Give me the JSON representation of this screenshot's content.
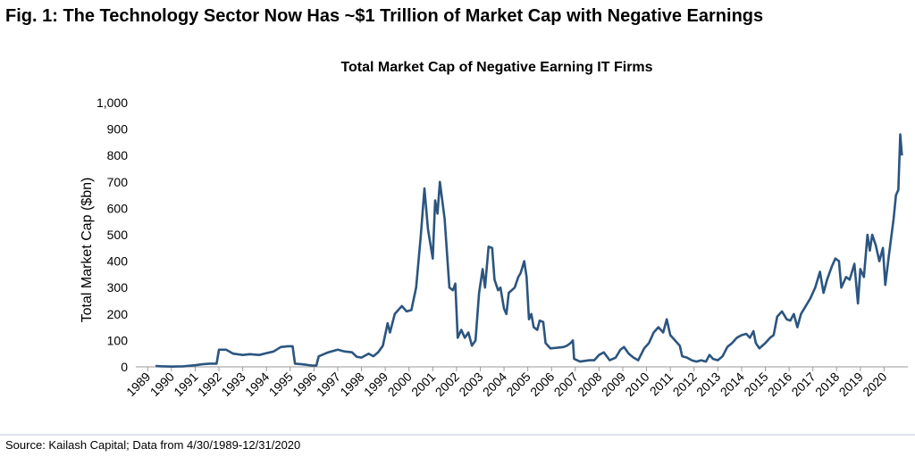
{
  "figure_title": "Fig. 1: The Technology Sector Now Has ~$1 Trillion of Market Cap with Negative Earnings",
  "source": "Source: Kailash Capital; Data from 4/30/1989-12/31/2020",
  "chart_data": {
    "type": "line",
    "title": "Total Market Cap of Negative Earning IT Firms",
    "y_label": "Total Market Cap ($bn)",
    "x": [
      1989.33,
      1989.6,
      1990.0,
      1990.5,
      1991.0,
      1991.3,
      1991.6,
      1991.9,
      1992.0,
      1992.3,
      1992.6,
      1993.0,
      1993.3,
      1993.7,
      1994.0,
      1994.3,
      1994.6,
      1994.9,
      1995.1,
      1995.2,
      1995.5,
      1995.9,
      1996.1,
      1996.2,
      1996.6,
      1997.0,
      1997.3,
      1997.6,
      1997.8,
      1998.0,
      1998.3,
      1998.5,
      1998.7,
      1998.9,
      1999.1,
      1999.2,
      1999.4,
      1999.7,
      1999.9,
      2000.1,
      2000.3,
      2000.5,
      2000.65,
      2000.8,
      2001.0,
      2001.1,
      2001.2,
      2001.3,
      2001.5,
      2001.7,
      2001.85,
      2001.95,
      2002.05,
      2002.2,
      2002.35,
      2002.5,
      2002.65,
      2002.8,
      2002.95,
      2003.1,
      2003.2,
      2003.35,
      2003.5,
      2003.6,
      2003.75,
      2003.85,
      2004.0,
      2004.1,
      2004.2,
      2004.45,
      2004.6,
      2004.7,
      2004.85,
      2004.95,
      2005.05,
      2005.15,
      2005.25,
      2005.4,
      2005.5,
      2005.65,
      2005.75,
      2005.95,
      2006.2,
      2006.5,
      2006.65,
      2006.8,
      2006.9,
      2006.95,
      2007.2,
      2007.6,
      2007.8,
      2008.0,
      2008.2,
      2008.45,
      2008.7,
      2008.9,
      2009.05,
      2009.25,
      2009.45,
      2009.65,
      2009.9,
      2010.1,
      2010.3,
      2010.5,
      2010.7,
      2010.85,
      2011.0,
      2011.2,
      2011.4,
      2011.5,
      2011.7,
      2011.9,
      2012.1,
      2012.3,
      2012.5,
      2012.65,
      2012.8,
      2013.0,
      2013.2,
      2013.4,
      2013.6,
      2013.8,
      2014.0,
      2014.2,
      2014.35,
      2014.5,
      2014.6,
      2014.75,
      2015.0,
      2015.2,
      2015.35,
      2015.5,
      2015.7,
      2015.9,
      2016.05,
      2016.2,
      2016.35,
      2016.5,
      2016.7,
      2016.9,
      2017.1,
      2017.3,
      2017.45,
      2017.6,
      2017.8,
      2017.95,
      2018.1,
      2018.2,
      2018.4,
      2018.55,
      2018.75,
      2018.9,
      2019.0,
      2019.15,
      2019.3,
      2019.4,
      2019.5,
      2019.65,
      2019.8,
      2019.95,
      2020.05,
      2020.2,
      2020.4,
      2020.5,
      2020.6,
      2020.68,
      2020.75
    ],
    "series": [
      {
        "name": "Total Market Cap",
        "color": "#2b5580",
        "values": [
          3,
          2,
          1,
          2,
          6,
          10,
          12,
          12,
          65,
          65,
          50,
          45,
          48,
          45,
          52,
          58,
          75,
          78,
          78,
          12,
          10,
          5,
          5,
          40,
          55,
          65,
          58,
          55,
          38,
          35,
          50,
          40,
          55,
          80,
          165,
          130,
          200,
          230,
          210,
          215,
          300,
          500,
          675,
          520,
          410,
          630,
          580,
          700,
          560,
          300,
          290,
          315,
          110,
          140,
          110,
          130,
          80,
          100,
          280,
          370,
          300,
          455,
          450,
          330,
          290,
          300,
          220,
          200,
          280,
          300,
          340,
          355,
          400,
          340,
          180,
          200,
          150,
          140,
          175,
          170,
          90,
          70,
          72,
          75,
          80,
          90,
          100,
          30,
          20,
          25,
          25,
          45,
          55,
          25,
          35,
          65,
          75,
          50,
          35,
          25,
          70,
          90,
          130,
          150,
          130,
          180,
          120,
          100,
          80,
          40,
          35,
          25,
          20,
          25,
          20,
          45,
          30,
          25,
          40,
          75,
          90,
          110,
          120,
          125,
          110,
          135,
          90,
          70,
          90,
          110,
          120,
          190,
          210,
          180,
          175,
          200,
          150,
          200,
          230,
          260,
          300,
          360,
          280,
          330,
          380,
          410,
          400,
          300,
          340,
          330,
          390,
          240,
          370,
          340,
          500,
          440,
          500,
          460,
          400,
          450,
          310,
          420,
          560,
          650,
          670,
          880,
          800
        ]
      }
    ],
    "xlim": [
      1988.5,
      2021
    ],
    "xticks": [
      1989,
      1990,
      1991,
      1992,
      1993,
      1994,
      1995,
      1996,
      1997,
      1998,
      1999,
      2000,
      2001,
      2002,
      2003,
      2004,
      2005,
      2006,
      2007,
      2008,
      2009,
      2010,
      2011,
      2012,
      2013,
      2014,
      2015,
      2016,
      2017,
      2018,
      2019,
      2020
    ],
    "ylim": [
      0,
      1000
    ],
    "yticks": [
      0,
      100,
      200,
      300,
      400,
      500,
      600,
      700,
      800,
      900,
      {
        "value": 1000,
        "label": "1,000"
      }
    ],
    "grid": false
  }
}
